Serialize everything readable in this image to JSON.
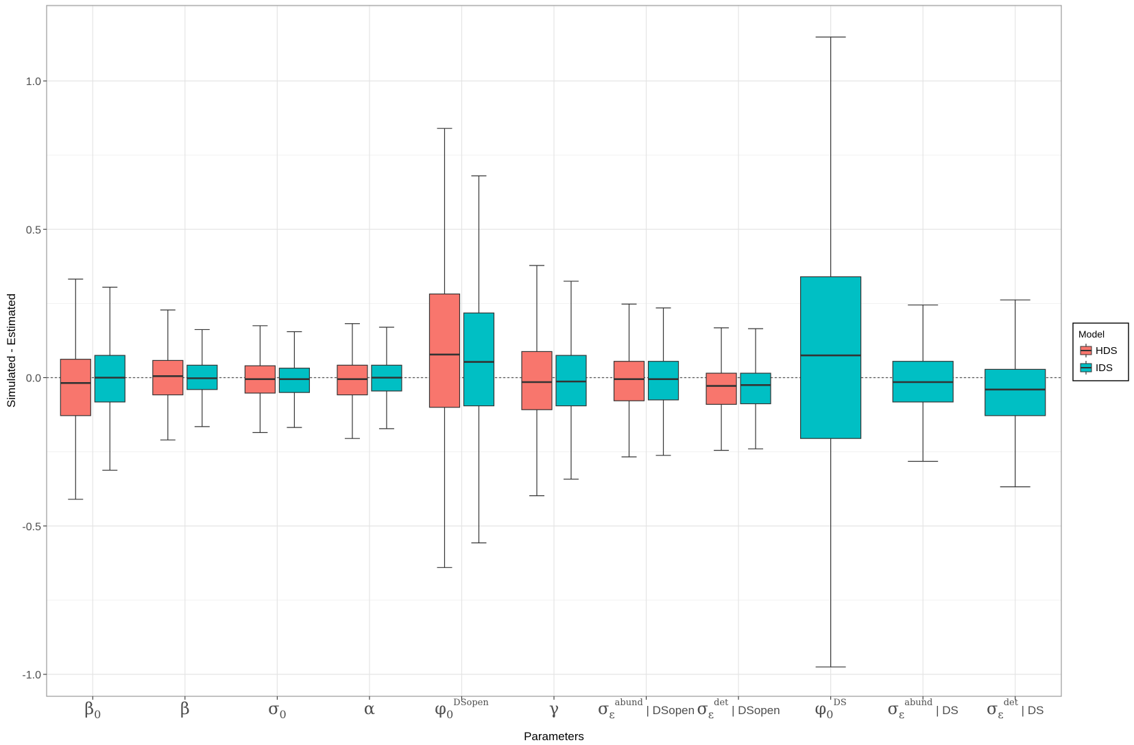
{
  "chart_data": {
    "type": "box",
    "xlabel": "Parameters",
    "ylabel": "Simulated - Estimated",
    "ylim": [
      -1.08,
      1.25
    ],
    "yticks": [
      {
        "value": 1.0,
        "label": "1.0"
      },
      {
        "value": 0.5,
        "label": "0.5"
      },
      {
        "value": 0.0,
        "label": "0.0"
      },
      {
        "value": -0.5,
        "label": "-0.5"
      },
      {
        "value": -1.0,
        "label": "-1.0"
      }
    ],
    "reference_line": 0,
    "colors": {
      "HDS": "#f8766d",
      "IDS": "#00bfc4"
    },
    "legend": {
      "title": "Model",
      "position": "right",
      "entries": [
        "HDS",
        "IDS"
      ]
    },
    "categories": [
      {
        "id": "beta0",
        "base": "β",
        "sub": "0",
        "sup": "",
        "tail": ""
      },
      {
        "id": "beta",
        "base": "β",
        "sub": "",
        "sup": "",
        "tail": ""
      },
      {
        "id": "sigma0",
        "base": "σ",
        "sub": "0",
        "sup": "",
        "tail": ""
      },
      {
        "id": "alpha",
        "base": "α",
        "sub": "",
        "sup": "",
        "tail": ""
      },
      {
        "id": "phi0-dsopen",
        "base": "φ",
        "sub": "0",
        "sup": "DSopen",
        "tail": ""
      },
      {
        "id": "gamma",
        "base": "γ",
        "sub": "",
        "sup": "",
        "tail": ""
      },
      {
        "id": "sigma-abund-dsopen",
        "base": "σ",
        "sub": "ε",
        "sup": "abund",
        "tail": " | DSopen"
      },
      {
        "id": "sigma-det-dsopen",
        "base": "σ",
        "sub": "ε",
        "sup": "det",
        "tail": " | DSopen"
      },
      {
        "id": "phi0-ds",
        "base": "φ",
        "sub": "0",
        "sup": "DS",
        "tail": ""
      },
      {
        "id": "sigma-abund-ds",
        "base": "σ",
        "sub": "ε",
        "sup": "abund",
        "tail": " | DS"
      },
      {
        "id": "sigma-det-ds",
        "base": "σ",
        "sub": "ε",
        "sup": "det",
        "tail": " | DS"
      }
    ],
    "series": [
      {
        "name": "HDS",
        "boxes": [
          {
            "category": 0,
            "whisker_low": -0.41,
            "q1": -0.128,
            "median": -0.018,
            "q3": 0.062,
            "whisker_high": 0.332
          },
          {
            "category": 1,
            "whisker_low": -0.21,
            "q1": -0.058,
            "median": 0.005,
            "q3": 0.058,
            "whisker_high": 0.228
          },
          {
            "category": 2,
            "whisker_low": -0.185,
            "q1": -0.052,
            "median": -0.005,
            "q3": 0.04,
            "whisker_high": 0.175
          },
          {
            "category": 3,
            "whisker_low": -0.205,
            "q1": -0.058,
            "median": -0.005,
            "q3": 0.042,
            "whisker_high": 0.182
          },
          {
            "category": 4,
            "whisker_low": -0.64,
            "q1": -0.1,
            "median": 0.078,
            "q3": 0.282,
            "whisker_high": 0.84
          },
          {
            "category": 5,
            "whisker_low": -0.398,
            "q1": -0.108,
            "median": -0.015,
            "q3": 0.088,
            "whisker_high": 0.378
          },
          {
            "category": 6,
            "whisker_low": -0.267,
            "q1": -0.078,
            "median": -0.005,
            "q3": 0.055,
            "whisker_high": 0.248
          },
          {
            "category": 7,
            "whisker_low": -0.245,
            "q1": -0.09,
            "median": -0.028,
            "q3": 0.015,
            "whisker_high": 0.168
          }
        ]
      },
      {
        "name": "IDS",
        "boxes": [
          {
            "category": 0,
            "whisker_low": -0.312,
            "q1": -0.082,
            "median": 0.0,
            "q3": 0.075,
            "whisker_high": 0.305
          },
          {
            "category": 1,
            "whisker_low": -0.165,
            "q1": -0.04,
            "median": -0.002,
            "q3": 0.042,
            "whisker_high": 0.162
          },
          {
            "category": 2,
            "whisker_low": -0.168,
            "q1": -0.05,
            "median": -0.005,
            "q3": 0.032,
            "whisker_high": 0.155
          },
          {
            "category": 3,
            "whisker_low": -0.172,
            "q1": -0.045,
            "median": 0.0,
            "q3": 0.042,
            "whisker_high": 0.17
          },
          {
            "category": 4,
            "whisker_low": -0.557,
            "q1": -0.095,
            "median": 0.053,
            "q3": 0.218,
            "whisker_high": 0.68
          },
          {
            "category": 5,
            "whisker_low": -0.342,
            "q1": -0.095,
            "median": -0.013,
            "q3": 0.075,
            "whisker_high": 0.325
          },
          {
            "category": 6,
            "whisker_low": -0.262,
            "q1": -0.075,
            "median": -0.005,
            "q3": 0.055,
            "whisker_high": 0.235
          },
          {
            "category": 7,
            "whisker_low": -0.24,
            "q1": -0.088,
            "median": -0.025,
            "q3": 0.015,
            "whisker_high": 0.165
          },
          {
            "category": 8,
            "whisker_low": -0.975,
            "q1": -0.205,
            "median": 0.075,
            "q3": 0.34,
            "whisker_high": 1.148
          },
          {
            "category": 9,
            "whisker_low": -0.282,
            "q1": -0.082,
            "median": -0.015,
            "q3": 0.055,
            "whisker_high": 0.245
          },
          {
            "category": 10,
            "whisker_low": -0.368,
            "q1": -0.128,
            "median": -0.04,
            "q3": 0.028,
            "whisker_high": 0.262
          }
        ]
      }
    ]
  }
}
